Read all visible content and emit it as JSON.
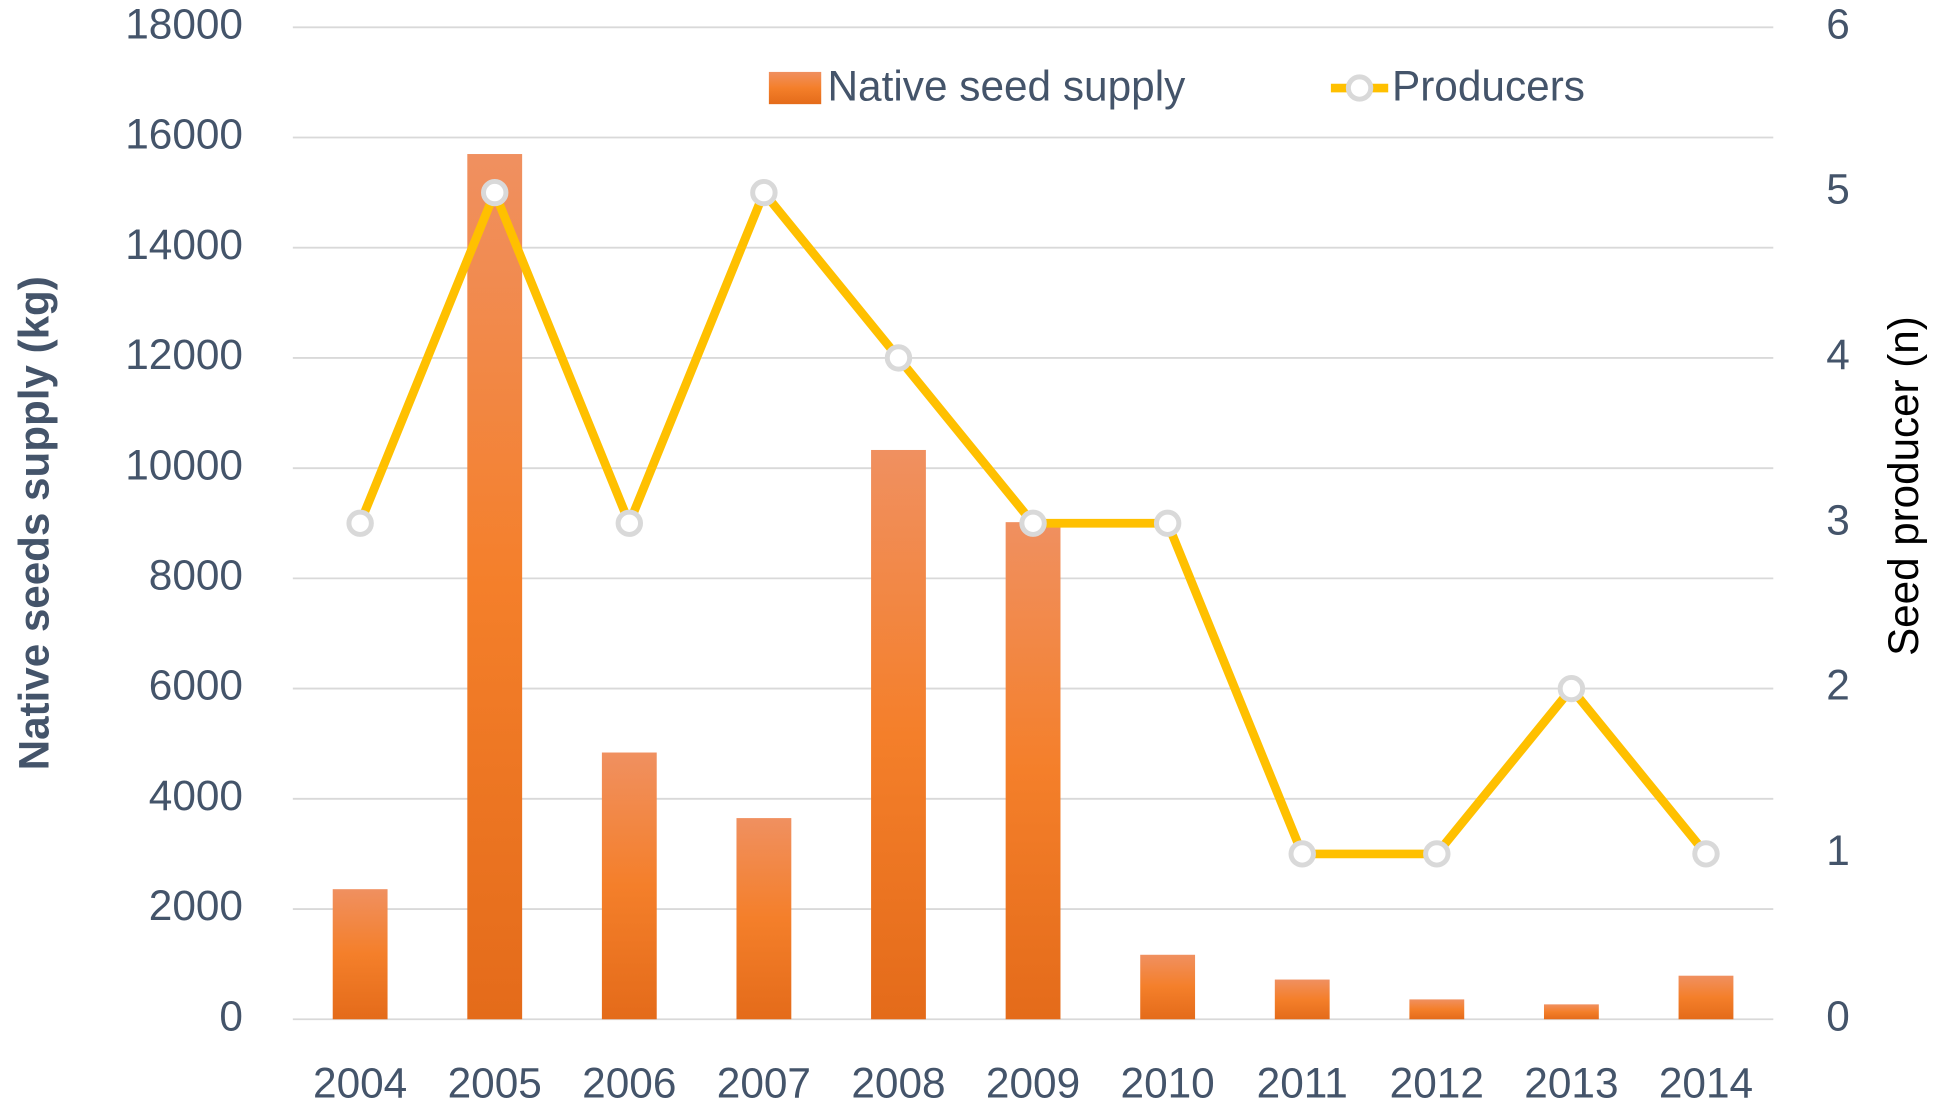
{
  "chart_data": {
    "type": "bar_line",
    "categories": [
      "2004",
      "2005",
      "2006",
      "2007",
      "2008",
      "2009",
      "2010",
      "2011",
      "2012",
      "2013",
      "2014"
    ],
    "series": [
      {
        "name": "Native seed supply",
        "type": "bar",
        "color": "#ed7d31",
        "values": [
          2360,
          15700,
          4840,
          3650,
          10330,
          9020,
          1170,
          720,
          360,
          270,
          790
        ]
      },
      {
        "name": "Producers",
        "type": "line",
        "axis": "y2",
        "color": "#ffc000",
        "values": [
          3,
          5,
          3,
          5,
          4,
          3,
          3,
          1,
          1,
          2,
          1
        ]
      }
    ],
    "ylabel": "Native seeds supply (kg)",
    "y2label": "Seed producer (n)",
    "ylim": [
      0,
      18000
    ],
    "yticks": [
      0,
      2000,
      4000,
      6000,
      8000,
      10000,
      12000,
      14000,
      16000,
      18000
    ],
    "y2lim": [
      0,
      6
    ],
    "y2ticks": [
      0,
      1,
      2,
      3,
      4,
      5,
      6
    ],
    "grid": true,
    "legend": "top"
  }
}
